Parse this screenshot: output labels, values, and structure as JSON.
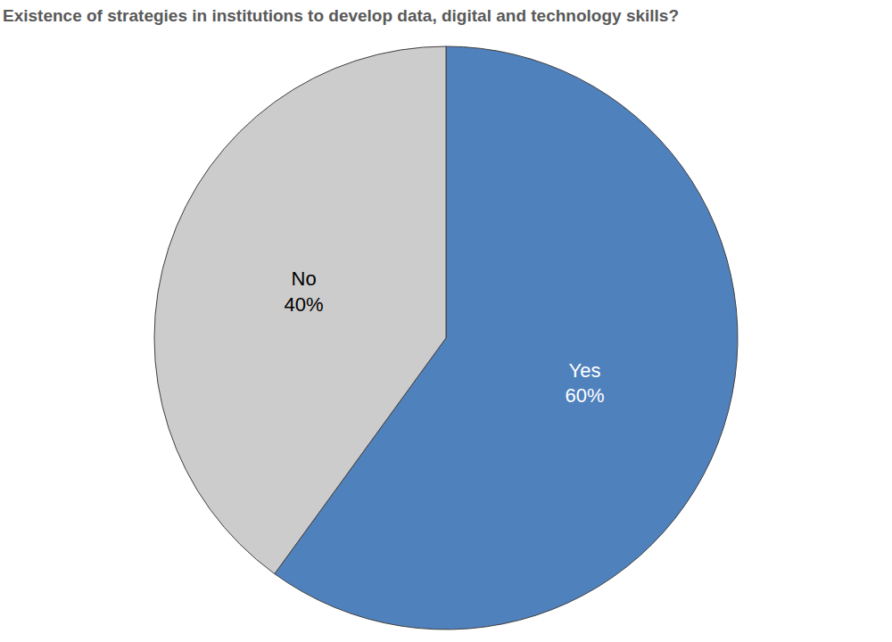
{
  "chart_data": {
    "type": "pie",
    "title": "Existence of strategies in institutions to develop data, digital and technology skills?",
    "categories": [
      "Yes",
      "No"
    ],
    "values": [
      60,
      40
    ],
    "value_labels": [
      "60%",
      "40%"
    ],
    "colors": [
      "#4f81bd",
      "#cccccc"
    ],
    "data_labels": true
  }
}
